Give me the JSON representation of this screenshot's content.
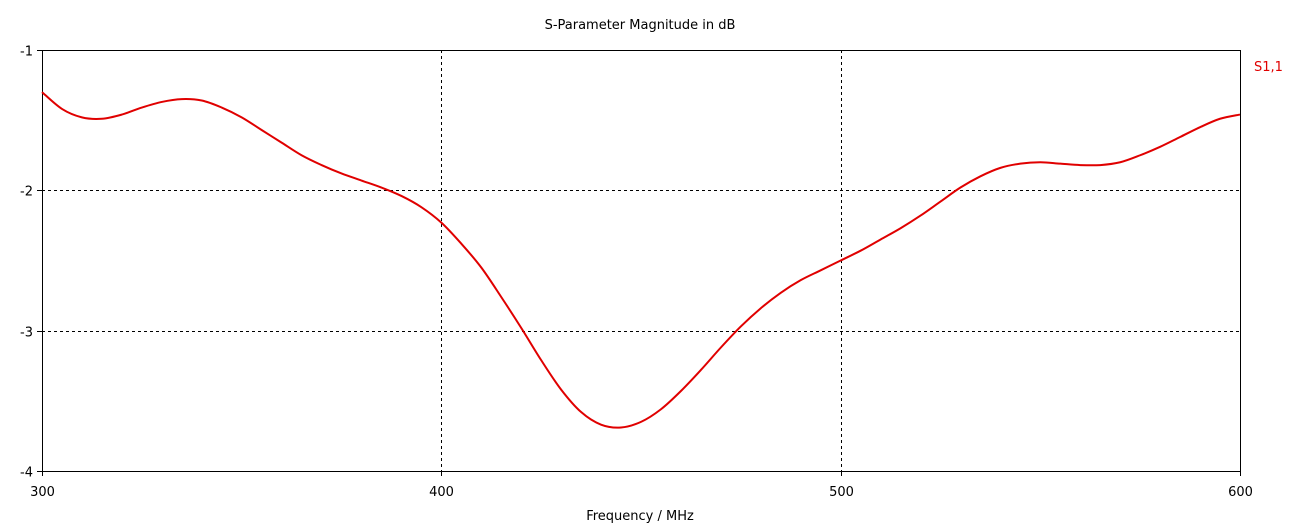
{
  "chart_data": {
    "type": "line",
    "title": "S-Parameter Magnitude in dB",
    "xlabel": "Frequency / MHz",
    "ylabel": "",
    "xlim": [
      300,
      600
    ],
    "ylim": [
      -4,
      -1
    ],
    "xticks": [
      300,
      400,
      500,
      600
    ],
    "yticks": [
      -1,
      -2,
      -3,
      -4
    ],
    "grid": true,
    "legend_position": "top-right",
    "series": [
      {
        "name": "S1,1",
        "color": "#e00000",
        "x": [
          300,
          305,
          310,
          315,
          320,
          325,
          330,
          335,
          340,
          345,
          350,
          355,
          360,
          365,
          370,
          375,
          380,
          385,
          390,
          395,
          400,
          405,
          410,
          415,
          420,
          425,
          430,
          435,
          440,
          445,
          450,
          455,
          460,
          465,
          470,
          475,
          480,
          485,
          490,
          495,
          500,
          505,
          510,
          515,
          520,
          525,
          530,
          535,
          540,
          545,
          550,
          555,
          560,
          565,
          570,
          575,
          580,
          585,
          590,
          595,
          600
        ],
        "values": [
          -1.3,
          -1.42,
          -1.48,
          -1.49,
          -1.46,
          -1.41,
          -1.37,
          -1.35,
          -1.36,
          -1.41,
          -1.48,
          -1.57,
          -1.66,
          -1.75,
          -1.82,
          -1.88,
          -1.93,
          -1.98,
          -2.04,
          -2.12,
          -2.23,
          -2.38,
          -2.55,
          -2.76,
          -2.98,
          -3.21,
          -3.42,
          -3.58,
          -3.67,
          -3.69,
          -3.65,
          -3.56,
          -3.43,
          -3.28,
          -3.12,
          -2.97,
          -2.84,
          -2.73,
          -2.64,
          -2.57,
          -2.5,
          -2.43,
          -2.35,
          -2.27,
          -2.18,
          -2.08,
          -1.98,
          -1.9,
          -1.84,
          -1.81,
          -1.8,
          -1.81,
          -1.82,
          -1.82,
          -1.8,
          -1.75,
          -1.69,
          -1.62,
          -1.55,
          -1.49,
          -1.46
        ]
      }
    ]
  }
}
